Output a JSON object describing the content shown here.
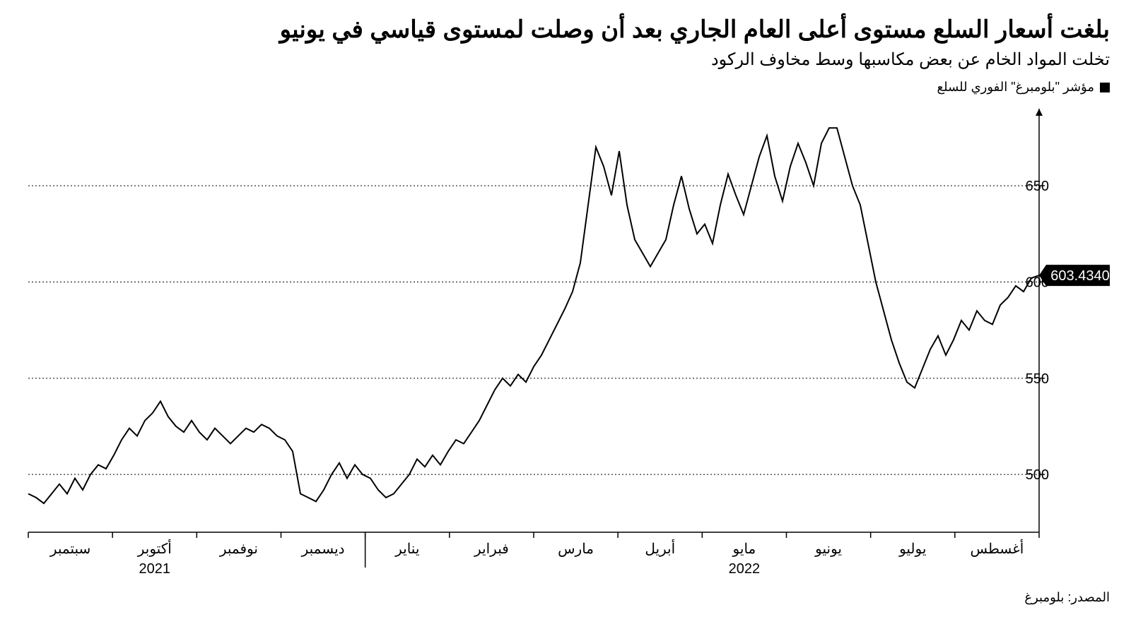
{
  "title": "بلغت أسعار السلع مستوى أعلى العام الجاري بعد أن وصلت لمستوى قياسي في يونيو",
  "subtitle": "تخلت المواد الخام عن بعض مكاسبها وسط مخاوف الركود",
  "legend": {
    "label": "مؤشر \"بلومبرغ\" الفوري للسلع",
    "swatch_color": "#000000"
  },
  "source": "المصدر: بلومبرغ",
  "chart": {
    "type": "line",
    "background_color": "#ffffff",
    "line_color": "#000000",
    "line_width": 2,
    "grid_color": "#000000",
    "grid_dash": "2 3",
    "font_size_ticks": 20,
    "y_axis": {
      "position": "right",
      "min": 470,
      "max": 690,
      "ticks": [
        500,
        550,
        600,
        650
      ],
      "tick_labels": [
        "500",
        "550",
        "600",
        "650"
      ]
    },
    "x_axis": {
      "months": [
        "سبتمبر",
        "أكتوبر",
        "نوفمبر",
        "ديسمبر",
        "يناير",
        "فبراير",
        "مارس",
        "أبريل",
        "مايو",
        "يونيو",
        "يوليو",
        "أغسطس"
      ],
      "years": [
        {
          "label": "2021",
          "under_index": 1
        },
        {
          "label": "2022",
          "under_index": 8
        }
      ]
    },
    "last_value_flag": {
      "value": "603.4340",
      "y": 603.434
    },
    "series": [
      490,
      488,
      485,
      490,
      495,
      490,
      498,
      492,
      500,
      505,
      503,
      510,
      518,
      524,
      520,
      528,
      532,
      538,
      530,
      525,
      522,
      528,
      522,
      518,
      524,
      520,
      516,
      520,
      524,
      522,
      526,
      524,
      520,
      518,
      512,
      490,
      488,
      486,
      492,
      500,
      506,
      498,
      505,
      500,
      498,
      492,
      488,
      490,
      495,
      500,
      508,
      504,
      510,
      505,
      512,
      518,
      516,
      522,
      528,
      536,
      544,
      550,
      546,
      552,
      548,
      556,
      562,
      570,
      578,
      586,
      595,
      610,
      640,
      670,
      660,
      645,
      668,
      640,
      622,
      615,
      608,
      615,
      622,
      640,
      655,
      638,
      625,
      630,
      620,
      640,
      656,
      645,
      635,
      650,
      665,
      676,
      655,
      642,
      660,
      672,
      662,
      650,
      672,
      680,
      680,
      665,
      650,
      640,
      620,
      600,
      585,
      570,
      558,
      548,
      545,
      555,
      565,
      572,
      562,
      570,
      580,
      575,
      585,
      580,
      578,
      588,
      592,
      598,
      595,
      602,
      603.434
    ]
  }
}
